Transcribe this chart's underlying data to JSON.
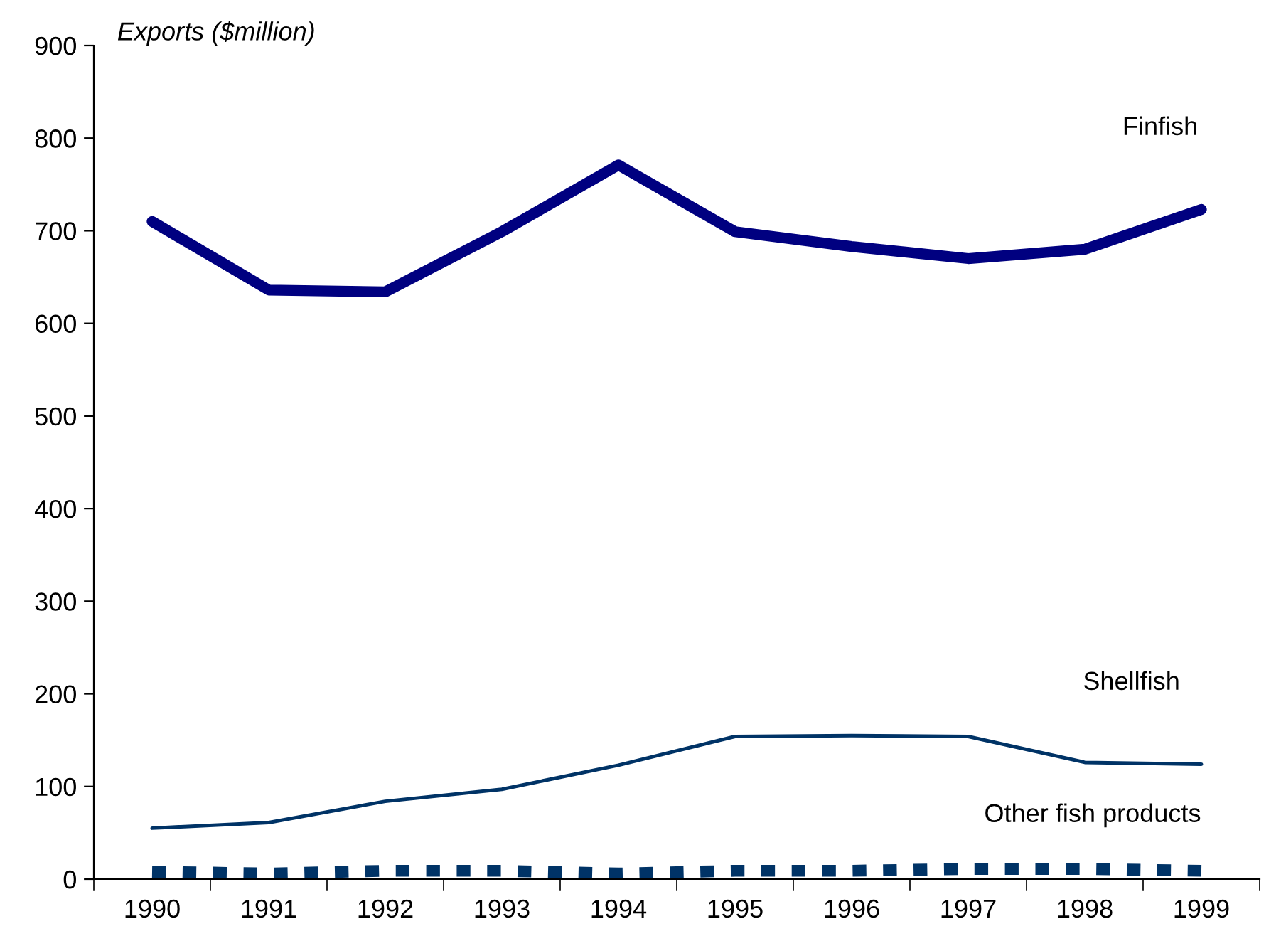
{
  "chart_data": {
    "type": "line",
    "ylabel": "Exports ($million)",
    "categories": [
      "1990",
      "1991",
      "1992",
      "1993",
      "1994",
      "1995",
      "1996",
      "1997",
      "1998",
      "1999"
    ],
    "series": [
      {
        "name": "Finfish",
        "color": "#000080",
        "values": [
          710,
          636,
          634,
          699,
          771,
          699,
          683,
          670,
          680,
          723
        ]
      },
      {
        "name": "Shellfish",
        "color": "#003366",
        "values": [
          55,
          61,
          84,
          97,
          123,
          154,
          155,
          154,
          126,
          124
        ]
      },
      {
        "name": "Other fish products",
        "color": "#003366",
        "line_style": "dotted",
        "values": [
          8,
          6,
          9,
          9,
          6,
          9,
          9,
          11,
          11,
          9
        ]
      }
    ],
    "ylim": [
      0,
      900
    ],
    "yticks": [
      0,
      100,
      200,
      300,
      400,
      500,
      600,
      700,
      800,
      900
    ],
    "grid": false,
    "legend": false,
    "marker": "none"
  }
}
